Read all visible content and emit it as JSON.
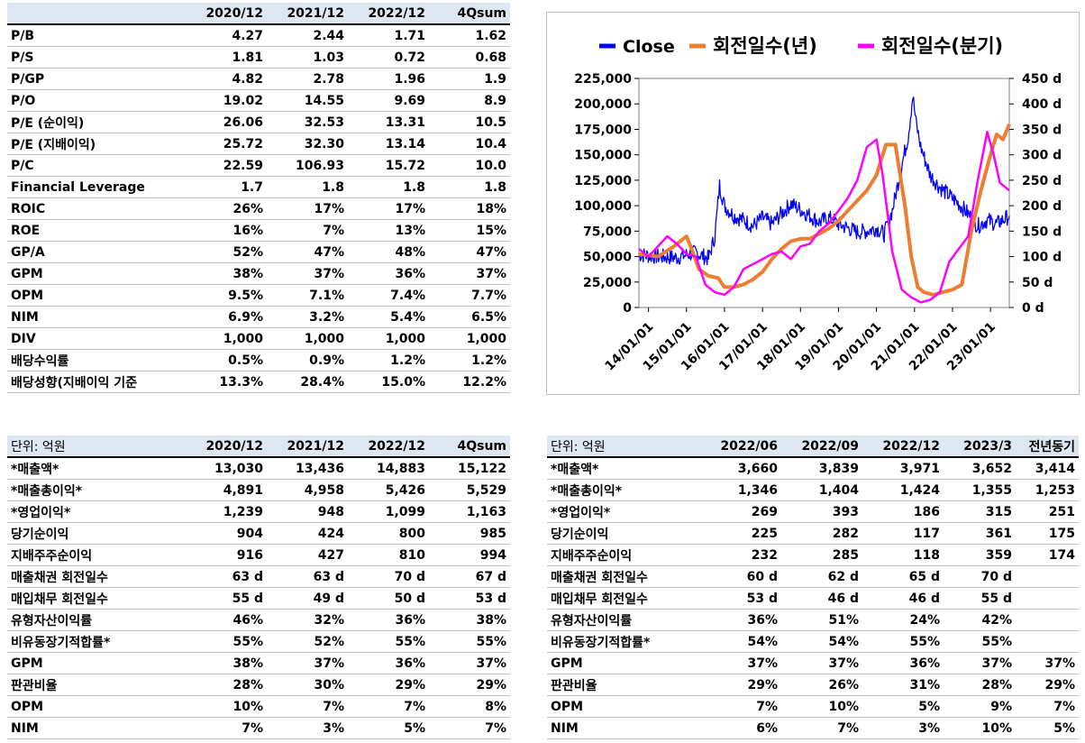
{
  "valuation_table": {
    "label_header": "",
    "columns": [
      "2020/12",
      "2021/12",
      "2022/12",
      "4Qsum"
    ],
    "rows": [
      {
        "label": "P/B",
        "values": [
          "4.27",
          "2.44",
          "1.71",
          "1.62"
        ]
      },
      {
        "label": "P/S",
        "values": [
          "1.81",
          "1.03",
          "0.72",
          "0.68"
        ]
      },
      {
        "label": "P/GP",
        "values": [
          "4.82",
          "2.78",
          "1.96",
          "1.9"
        ]
      },
      {
        "label": "P/O",
        "values": [
          "19.02",
          "14.55",
          "9.69",
          "8.9"
        ]
      },
      {
        "label": "P/E (순이익)",
        "values": [
          "26.06",
          "32.53",
          "13.31",
          "10.5"
        ]
      },
      {
        "label": "P/E (지배이익)",
        "values": [
          "25.72",
          "32.30",
          "13.14",
          "10.4"
        ]
      },
      {
        "label": "P/C",
        "values": [
          "22.59",
          "106.93",
          "15.72",
          "10.0"
        ]
      },
      {
        "label": "Financial Leverage",
        "values": [
          "1.7",
          "1.8",
          "1.8",
          "1.8"
        ]
      },
      {
        "label": "ROIC",
        "values": [
          "26%",
          "17%",
          "17%",
          "18%"
        ]
      },
      {
        "label": "ROE",
        "values": [
          "16%",
          "7%",
          "13%",
          "15%"
        ]
      },
      {
        "label": "GP/A",
        "values": [
          "52%",
          "47%",
          "48%",
          "47%"
        ]
      },
      {
        "label": "GPM",
        "values": [
          "38%",
          "37%",
          "36%",
          "37%"
        ]
      },
      {
        "label": "OPM",
        "values": [
          "9.5%",
          "7.1%",
          "7.4%",
          "7.7%"
        ]
      },
      {
        "label": "NIM",
        "values": [
          "6.9%",
          "3.2%",
          "5.4%",
          "6.5%"
        ]
      },
      {
        "label": "DIV",
        "values": [
          "1,000",
          "1,000",
          "1,000",
          "1,000"
        ]
      },
      {
        "label": "배당수익률",
        "values": [
          "0.5%",
          "0.9%",
          "1.2%",
          "1.2%"
        ]
      },
      {
        "label": "배당성향(지배이익 기준",
        "values": [
          "13.3%",
          "28.4%",
          "15.0%",
          "12.2%"
        ]
      }
    ]
  },
  "annual_table": {
    "label_header": "단위: 억원",
    "columns": [
      "2020/12",
      "2021/12",
      "2022/12",
      "4Qsum"
    ],
    "rows": [
      {
        "label": "*매출액*",
        "values": [
          "13,030",
          "13,436",
          "14,883",
          "15,122"
        ]
      },
      {
        "label": "*매출총이익*",
        "values": [
          "4,891",
          "4,958",
          "5,426",
          "5,529"
        ]
      },
      {
        "label": "*영업이익*",
        "values": [
          "1,239",
          "948",
          "1,099",
          "1,163"
        ]
      },
      {
        "label": "당기순이익",
        "values": [
          "904",
          "424",
          "800",
          "985"
        ]
      },
      {
        "label": "지배주주순이익",
        "values": [
          "916",
          "427",
          "810",
          "994"
        ]
      },
      {
        "label": "매출채권 회전일수",
        "values": [
          "63 d",
          "63 d",
          "70 d",
          "67 d"
        ]
      },
      {
        "label": "매입채무 회전일수",
        "values": [
          "55 d",
          "49 d",
          "50 d",
          "53 d"
        ]
      },
      {
        "label": "유형자산이익률",
        "values": [
          "46%",
          "32%",
          "36%",
          "38%"
        ]
      },
      {
        "label": "비유동장기적합률*",
        "values": [
          "55%",
          "52%",
          "55%",
          "55%"
        ]
      },
      {
        "label": "GPM",
        "values": [
          "38%",
          "37%",
          "36%",
          "37%"
        ]
      },
      {
        "label": "판관비율",
        "values": [
          "28%",
          "30%",
          "29%",
          "29%"
        ]
      },
      {
        "label": "OPM",
        "values": [
          "10%",
          "7%",
          "7%",
          "8%"
        ]
      },
      {
        "label": "NIM",
        "values": [
          "7%",
          "3%",
          "5%",
          "7%"
        ]
      }
    ]
  },
  "quarterly_table": {
    "label_header": "단위: 억원",
    "columns": [
      "2022/06",
      "2022/09",
      "2022/12",
      "2023/3",
      "전년동기"
    ],
    "rows": [
      {
        "label": "*매출액*",
        "values": [
          "3,660",
          "3,839",
          "3,971",
          "3,652",
          "3,414"
        ]
      },
      {
        "label": "*매출총이익*",
        "values": [
          "1,346",
          "1,404",
          "1,424",
          "1,355",
          "1,253"
        ]
      },
      {
        "label": "*영업이익*",
        "values": [
          "269",
          "393",
          "186",
          "315",
          "251"
        ]
      },
      {
        "label": "당기순이익",
        "values": [
          "225",
          "282",
          "117",
          "361",
          "175"
        ]
      },
      {
        "label": "지배주주순이익",
        "values": [
          "232",
          "285",
          "118",
          "359",
          "174"
        ]
      },
      {
        "label": "매출채권 회전일수",
        "values": [
          "60 d",
          "62 d",
          "65 d",
          "70 d",
          ""
        ]
      },
      {
        "label": "매입채무 회전일수",
        "values": [
          "53 d",
          "46 d",
          "46 d",
          "55 d",
          ""
        ]
      },
      {
        "label": "유형자산이익률",
        "values": [
          "36%",
          "51%",
          "24%",
          "42%",
          ""
        ]
      },
      {
        "label": "비유동장기적합률*",
        "values": [
          "54%",
          "54%",
          "55%",
          "55%",
          ""
        ]
      },
      {
        "label": "GPM",
        "values": [
          "37%",
          "37%",
          "36%",
          "37%",
          "37%"
        ]
      },
      {
        "label": "판관비율",
        "values": [
          "29%",
          "26%",
          "31%",
          "28%",
          "29%"
        ]
      },
      {
        "label": "OPM",
        "values": [
          "7%",
          "10%",
          "5%",
          "9%",
          "7%"
        ]
      },
      {
        "label": "NIM",
        "values": [
          "6%",
          "7%",
          "3%",
          "10%",
          "5%"
        ]
      }
    ]
  },
  "chart_data": {
    "type": "line",
    "legend_position": "top",
    "grid": false,
    "x_tick_labels": [
      "14/01/01",
      "15/01/01",
      "16/01/01",
      "17/01/01",
      "18/01/01",
      "19/01/01",
      "20/01/01",
      "21/01/01",
      "22/01/01",
      "23/01/01"
    ],
    "x_range": [
      "2013-10-01",
      "2023-07-01"
    ],
    "y_left": {
      "range": [
        0,
        225000
      ],
      "ticks": [
        "0",
        "25,000",
        "50,000",
        "75,000",
        "100,000",
        "125,000",
        "150,000",
        "175,000",
        "200,000",
        "225,000"
      ]
    },
    "y_right": {
      "range": [
        0,
        450
      ],
      "ticks": [
        "0 d",
        "50 d",
        "100 d",
        "150 d",
        "200 d",
        "250 d",
        "300 d",
        "350 d",
        "400 d",
        "450 d"
      ]
    },
    "series": [
      {
        "name": "Close",
        "color": "#0000ff",
        "axis": "left",
        "points": [
          [
            "2013-10-01",
            52000
          ],
          [
            "2014-04-01",
            50000
          ],
          [
            "2014-10-01",
            49000
          ],
          [
            "2015-04-01",
            54000
          ],
          [
            "2015-08-01",
            48000
          ],
          [
            "2015-10-01",
            70000
          ],
          [
            "2015-11-15",
            120000
          ],
          [
            "2016-01-01",
            100000
          ],
          [
            "2016-04-01",
            90000
          ],
          [
            "2016-07-01",
            86000
          ],
          [
            "2016-10-01",
            80000
          ],
          [
            "2017-01-01",
            88000
          ],
          [
            "2017-04-01",
            82000
          ],
          [
            "2017-07-01",
            92000
          ],
          [
            "2017-10-01",
            102000
          ],
          [
            "2018-01-01",
            96000
          ],
          [
            "2018-04-01",
            90000
          ],
          [
            "2018-07-01",
            84000
          ],
          [
            "2018-10-01",
            88000
          ],
          [
            "2019-01-01",
            82000
          ],
          [
            "2019-04-01",
            78000
          ],
          [
            "2019-07-01",
            74000
          ],
          [
            "2019-10-01",
            75000
          ],
          [
            "2020-01-01",
            78000
          ],
          [
            "2020-03-15",
            72000
          ],
          [
            "2020-06-01",
            95000
          ],
          [
            "2020-09-01",
            140000
          ],
          [
            "2020-11-01",
            168000
          ],
          [
            "2020-12-15",
            208000
          ],
          [
            "2021-01-15",
            182000
          ],
          [
            "2021-03-01",
            158000
          ],
          [
            "2021-06-01",
            130000
          ],
          [
            "2021-09-01",
            118000
          ],
          [
            "2021-12-01",
            110000
          ],
          [
            "2022-03-01",
            102000
          ],
          [
            "2022-06-01",
            92000
          ],
          [
            "2022-09-01",
            80000
          ],
          [
            "2022-12-01",
            86000
          ],
          [
            "2023-03-01",
            82000
          ],
          [
            "2023-07-01",
            90000
          ]
        ]
      },
      {
        "name": "회전일수(년)",
        "color": "#ed7d31",
        "axis": "right",
        "points": [
          [
            "2013-10-01",
            105
          ],
          [
            "2014-04-01",
            100
          ],
          [
            "2014-09-01",
            120
          ],
          [
            "2015-01-01",
            140
          ],
          [
            "2015-03-01",
            110
          ],
          [
            "2015-05-01",
            75
          ],
          [
            "2015-08-01",
            62
          ],
          [
            "2015-11-01",
            58
          ],
          [
            "2016-01-01",
            40
          ],
          [
            "2016-04-01",
            40
          ],
          [
            "2016-07-01",
            45
          ],
          [
            "2016-10-01",
            55
          ],
          [
            "2017-01-01",
            70
          ],
          [
            "2017-04-01",
            95
          ],
          [
            "2017-07-01",
            115
          ],
          [
            "2017-10-01",
            130
          ],
          [
            "2018-01-01",
            135
          ],
          [
            "2018-04-01",
            135
          ],
          [
            "2018-07-01",
            145
          ],
          [
            "2018-10-01",
            155
          ],
          [
            "2019-01-01",
            170
          ],
          [
            "2019-04-01",
            190
          ],
          [
            "2019-07-01",
            210
          ],
          [
            "2019-10-01",
            230
          ],
          [
            "2020-01-01",
            260
          ],
          [
            "2020-04-01",
            320
          ],
          [
            "2020-07-01",
            320
          ],
          [
            "2020-10-01",
            200
          ],
          [
            "2020-12-01",
            100
          ],
          [
            "2021-02-01",
            40
          ],
          [
            "2021-04-01",
            30
          ],
          [
            "2021-07-01",
            25
          ],
          [
            "2021-10-01",
            30
          ],
          [
            "2022-01-01",
            35
          ],
          [
            "2022-04-01",
            45
          ],
          [
            "2022-07-01",
            150
          ],
          [
            "2022-10-01",
            230
          ],
          [
            "2023-01-01",
            300
          ],
          [
            "2023-03-01",
            340
          ],
          [
            "2023-05-01",
            330
          ],
          [
            "2023-07-01",
            360
          ]
        ]
      },
      {
        "name": "회전일수(분기)",
        "color": "#ff00ff",
        "axis": "right",
        "points": [
          [
            "2013-10-01",
            115
          ],
          [
            "2014-01-01",
            100
          ],
          [
            "2014-04-01",
            120
          ],
          [
            "2014-07-01",
            140
          ],
          [
            "2014-10-01",
            125
          ],
          [
            "2015-01-01",
            105
          ],
          [
            "2015-04-01",
            100
          ],
          [
            "2015-07-01",
            45
          ],
          [
            "2015-10-01",
            30
          ],
          [
            "2016-01-01",
            25
          ],
          [
            "2016-04-01",
            40
          ],
          [
            "2016-07-01",
            75
          ],
          [
            "2016-10-01",
            85
          ],
          [
            "2017-01-01",
            95
          ],
          [
            "2017-04-01",
            105
          ],
          [
            "2017-07-01",
            110
          ],
          [
            "2017-10-01",
            95
          ],
          [
            "2018-01-01",
            120
          ],
          [
            "2018-04-01",
            125
          ],
          [
            "2018-07-01",
            150
          ],
          [
            "2018-10-01",
            165
          ],
          [
            "2019-01-01",
            190
          ],
          [
            "2019-04-01",
            215
          ],
          [
            "2019-07-01",
            250
          ],
          [
            "2019-10-01",
            315
          ],
          [
            "2020-01-01",
            330
          ],
          [
            "2020-03-01",
            260
          ],
          [
            "2020-06-01",
            110
          ],
          [
            "2020-09-01",
            35
          ],
          [
            "2020-12-01",
            20
          ],
          [
            "2021-03-01",
            10
          ],
          [
            "2021-06-01",
            15
          ],
          [
            "2021-09-01",
            30
          ],
          [
            "2021-12-01",
            90
          ],
          [
            "2022-03-01",
            115
          ],
          [
            "2022-06-01",
            140
          ],
          [
            "2022-09-01",
            250
          ],
          [
            "2022-12-01",
            345
          ],
          [
            "2023-02-01",
            300
          ],
          [
            "2023-04-01",
            245
          ],
          [
            "2023-07-01",
            230
          ]
        ]
      }
    ]
  }
}
